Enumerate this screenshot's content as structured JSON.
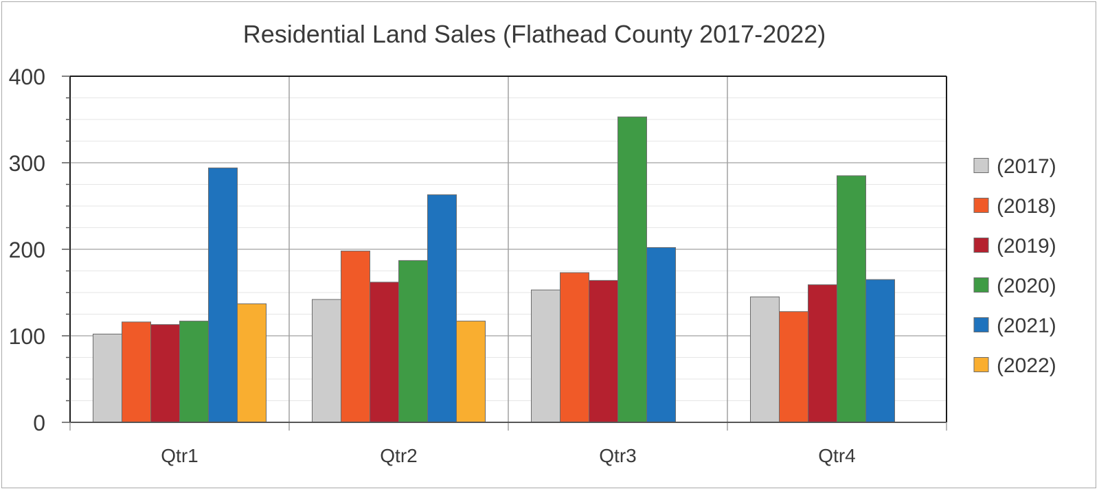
{
  "chart_data": {
    "type": "bar",
    "title": "Residential Land Sales (Flathead County 2017-2022)",
    "xlabel": "",
    "ylabel": "",
    "categories": [
      "Qtr1",
      "Qtr2",
      "Qtr3",
      "Qtr4"
    ],
    "ylim": [
      0,
      400
    ],
    "yticks": [
      0,
      100,
      200,
      300,
      400
    ],
    "grid": true,
    "legend_position": "right",
    "series": [
      {
        "name": "(2017)",
        "color": "#cccccc",
        "values": [
          102,
          142,
          153,
          145
        ]
      },
      {
        "name": "(2018)",
        "color": "#f05a28",
        "values": [
          116,
          198,
          173,
          128
        ]
      },
      {
        "name": "(2019)",
        "color": "#b5212f",
        "values": [
          113,
          162,
          164,
          159
        ]
      },
      {
        "name": "(2020)",
        "color": "#3f9b45",
        "values": [
          117,
          187,
          353,
          285
        ]
      },
      {
        "name": "(2021)",
        "color": "#1f73bd",
        "values": [
          294,
          263,
          202,
          165
        ]
      },
      {
        "name": "(2022)",
        "color": "#f9ae30",
        "values": [
          137,
          117,
          null,
          null
        ]
      }
    ]
  }
}
